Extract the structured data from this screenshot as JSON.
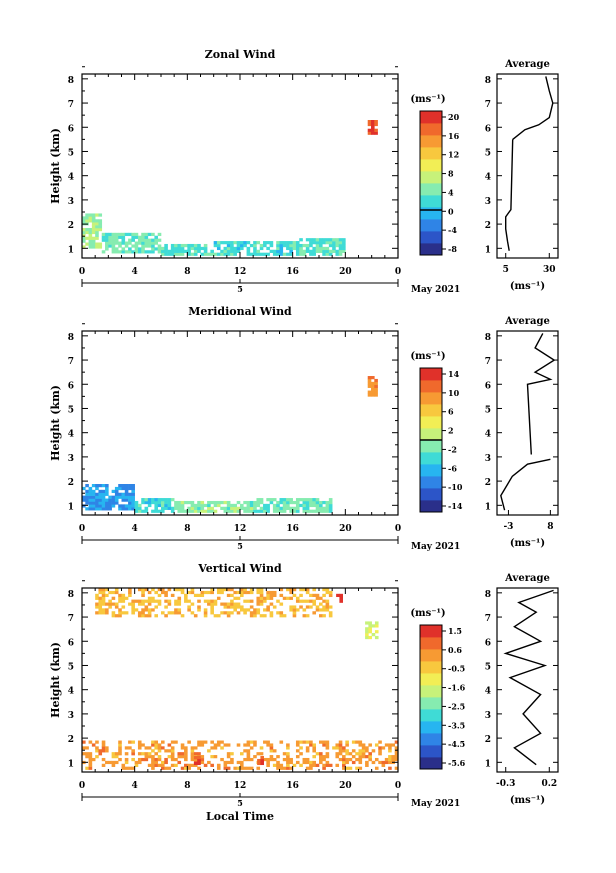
{
  "figure": {
    "xlabel": "Local Time",
    "x_ticks": [
      "0",
      "4",
      "8",
      "12",
      "16",
      "20",
      "0"
    ],
    "y_ticks": [
      "1",
      "2",
      "3",
      "4",
      "5",
      "6",
      "7",
      "8"
    ],
    "ylabel": "Height (km)",
    "unit_label": "(ms⁻¹)",
    "date_label": "May 2021",
    "day_label": "5",
    "avg_title": "Average",
    "avg_xunit": "(ms⁻¹)"
  },
  "chart_data": [
    {
      "type": "heatmap",
      "title": "Zonal Wind",
      "xlim": [
        0,
        24
      ],
      "ylim": [
        0.6,
        8.2
      ],
      "colorbar_ticks": [
        "20",
        "16",
        "12",
        "8",
        "4",
        "0",
        "-4",
        "-8"
      ],
      "colorbar_range": [
        -10,
        22
      ],
      "colorbar_zero_line": 0,
      "colormap": [
        "#2a2f8a",
        "#2c55c8",
        "#2f84e6",
        "#27b5f0",
        "#3fdbd6",
        "#86ecb0",
        "#c7f27a",
        "#f2ee55",
        "#f8c83e",
        "#f79a33",
        "#f0692c",
        "#e0312a"
      ],
      "cells": [
        {
          "x": [
            0,
            1.5
          ],
          "y": [
            1.0,
            2.4
          ],
          "v": 6
        },
        {
          "x": [
            1.5,
            6
          ],
          "y": [
            0.8,
            1.6
          ],
          "v": 4
        },
        {
          "x": [
            6,
            10
          ],
          "y": [
            0.7,
            1.1
          ],
          "v": 3
        },
        {
          "x": [
            10,
            16
          ],
          "y": [
            0.7,
            1.3
          ],
          "v": 2
        },
        {
          "x": [
            16,
            20
          ],
          "y": [
            0.7,
            1.4
          ],
          "v": 3
        },
        {
          "x": [
            21.7,
            22.3
          ],
          "y": [
            5.7,
            6.3
          ],
          "v": 20
        }
      ],
      "average": {
        "x_ticks": [
          "5",
          "30"
        ],
        "xlim": [
          0,
          35
        ],
        "profile": [
          [
            7,
            0.9
          ],
          [
            6,
            1.3
          ],
          [
            5,
            1.8
          ],
          [
            5,
            2.3
          ],
          [
            8,
            2.6
          ],
          [
            9,
            5.5
          ],
          [
            16,
            5.9
          ],
          [
            24,
            6.1
          ],
          [
            30,
            6.4
          ],
          [
            32,
            7.0
          ],
          [
            30,
            7.5
          ],
          [
            28,
            8.1
          ]
        ],
        "profile_segments": [
          [
            0,
            5
          ],
          [
            5,
            11
          ]
        ]
      }
    },
    {
      "type": "heatmap",
      "title": "Meridional Wind",
      "xlim": [
        0,
        24
      ],
      "ylim": [
        0.6,
        8.2
      ],
      "colorbar_ticks": [
        "14",
        "10",
        "6",
        "2",
        "-2",
        "-6",
        "-10",
        "-14"
      ],
      "colorbar_range": [
        -16,
        16
      ],
      "colorbar_zero_line": 0,
      "colormap": [
        "#2a2f8a",
        "#2c55c8",
        "#2f84e6",
        "#27b5f0",
        "#3fdbd6",
        "#86ecb0",
        "#c7f27a",
        "#f2ee55",
        "#f8c83e",
        "#f79a33",
        "#f0692c",
        "#e0312a"
      ],
      "cells": [
        {
          "x": [
            0,
            4
          ],
          "y": [
            0.8,
            1.8
          ],
          "v": -8
        },
        {
          "x": [
            4,
            7
          ],
          "y": [
            0.7,
            1.2
          ],
          "v": -4
        },
        {
          "x": [
            7,
            13
          ],
          "y": [
            0.7,
            1.1
          ],
          "v": -1
        },
        {
          "x": [
            13,
            19
          ],
          "y": [
            0.7,
            1.2
          ],
          "v": -2
        },
        {
          "x": [
            21.7,
            22.3
          ],
          "y": [
            5.5,
            6.3
          ],
          "v": 10
        }
      ],
      "average": {
        "x_ticks": [
          "-3",
          "8"
        ],
        "xlim": [
          -6,
          10
        ],
        "profile": [
          [
            -4,
            0.8
          ],
          [
            -5,
            1.4
          ],
          [
            -2,
            2.2
          ],
          [
            2,
            2.7
          ],
          [
            8,
            2.9
          ],
          [
            3,
            3.1
          ],
          [
            2,
            6.0
          ],
          [
            8,
            6.2
          ],
          [
            4,
            6.5
          ],
          [
            9,
            7.0
          ],
          [
            4,
            7.5
          ],
          [
            6,
            8.1
          ]
        ],
        "profile_segments": [
          [
            0,
            4
          ],
          [
            5,
            11
          ]
        ]
      }
    },
    {
      "type": "heatmap",
      "title": "Vertical Wind",
      "xlim": [
        0,
        24
      ],
      "ylim": [
        0.6,
        8.2
      ],
      "colorbar_ticks": [
        "1.5",
        "0.6",
        "-0.5",
        "-1.6",
        "-2.5",
        "-3.5",
        "-4.5",
        "-5.6"
      ],
      "colorbar_range": [
        -6,
        2
      ],
      "colorbar_zero_line": null,
      "colormap": [
        "#2a2f8a",
        "#2c55c8",
        "#2f84e6",
        "#27b5f0",
        "#3fdbd6",
        "#86ecb0",
        "#c7f27a",
        "#f2ee55",
        "#f8c83e",
        "#f79a33",
        "#f0692c",
        "#e0312a"
      ],
      "cells": [
        {
          "x": [
            0,
            24
          ],
          "y": [
            0.7,
            1.9
          ],
          "v": 0.3
        },
        {
          "x": [
            1,
            19
          ],
          "y": [
            7.0,
            8.1
          ],
          "v": -0.1
        },
        {
          "x": [
            21.5,
            22.5
          ],
          "y": [
            6.1,
            6.8
          ],
          "v": -1.4
        },
        {
          "x": [
            8.5,
            9.0
          ],
          "y": [
            0.9,
            1.2
          ],
          "v": 1.6
        },
        {
          "x": [
            13.3,
            13.8
          ],
          "y": [
            0.9,
            1.2
          ],
          "v": 1.5
        },
        {
          "x": [
            19.3,
            19.8
          ],
          "y": [
            7.6,
            7.9
          ],
          "v": 1.6
        }
      ],
      "average": {
        "x_ticks": [
          "-0.3",
          "0.2"
        ],
        "xlim": [
          -0.4,
          0.3
        ],
        "profile": [
          [
            0.05,
            0.9
          ],
          [
            -0.2,
            1.6
          ],
          [
            0.1,
            2.2
          ],
          [
            -0.1,
            3.0
          ],
          [
            0.1,
            3.8
          ],
          [
            -0.25,
            4.5
          ],
          [
            0.15,
            5.0
          ],
          [
            -0.3,
            5.5
          ],
          [
            0.1,
            6.0
          ],
          [
            -0.2,
            6.6
          ],
          [
            0.05,
            7.2
          ],
          [
            -0.15,
            7.6
          ],
          [
            0.25,
            8.1
          ]
        ],
        "profile_segments": [
          [
            0,
            12
          ]
        ]
      }
    }
  ]
}
